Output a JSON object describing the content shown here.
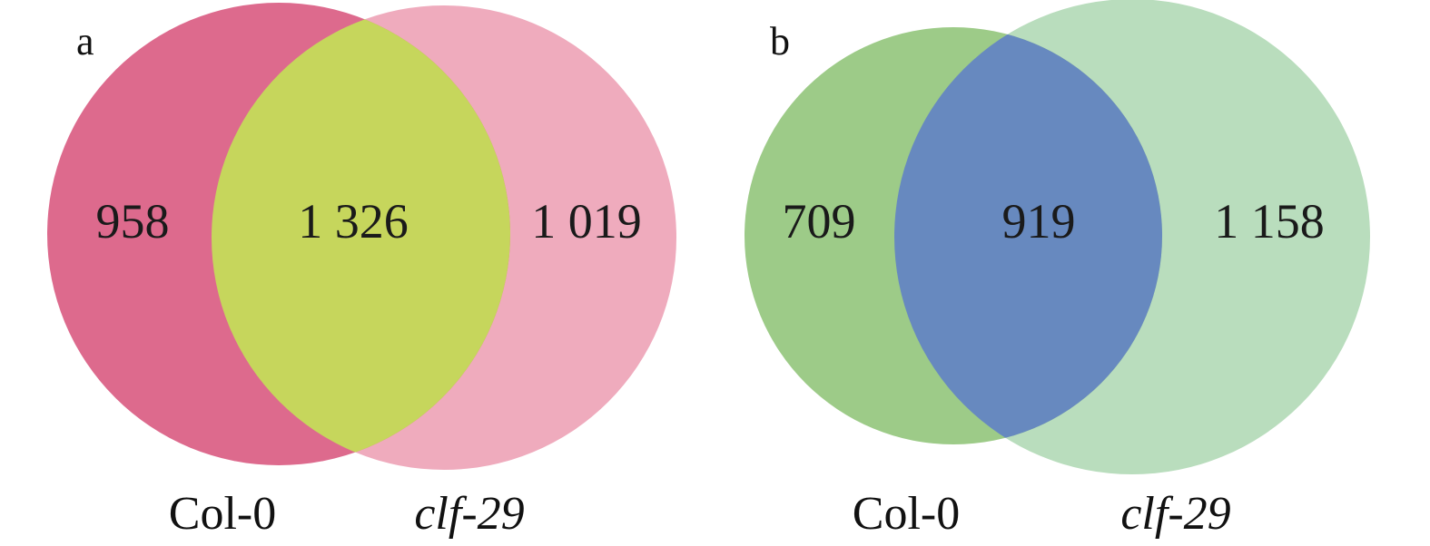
{
  "panels": [
    {
      "label": "a",
      "left_only": "958",
      "overlap": "1 326",
      "right_only": "1 019",
      "left_set": "Col-0",
      "right_set": "clf-29",
      "colors": {
        "left": "#dd6a8d",
        "right": "#efabbd",
        "overlap": "#c6d65c"
      }
    },
    {
      "label": "b",
      "left_only": "709",
      "overlap": "919",
      "right_only": "1 158",
      "left_set": "Col-0",
      "right_set": "clf-29",
      "colors": {
        "left": "#9dcb88",
        "right": "#b9ddbd",
        "overlap": "#6789bf"
      }
    }
  ]
}
